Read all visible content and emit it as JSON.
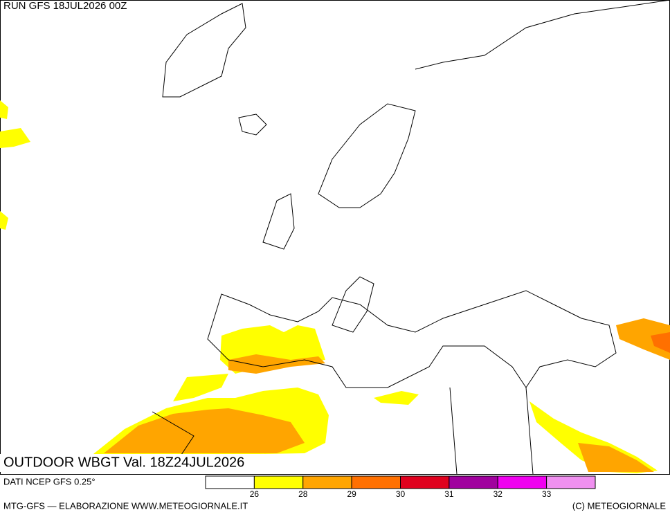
{
  "header": {
    "run": "RUN GFS 18JUL2026 00Z"
  },
  "map": {
    "title": "OUTDOOR WBGT Val. 18Z24JUL2026"
  },
  "legend": {
    "source": "DATI NCEP GFS 0.25°",
    "colors": [
      "#ffffff",
      "#ffff00",
      "#ffa500",
      "#ff7000",
      "#e0001e",
      "#a0009e",
      "#f000f0",
      "#f090f0"
    ],
    "labels": [
      26,
      28,
      29,
      30,
      31,
      32,
      33
    ]
  },
  "footer": {
    "left": "MTG-GFS — ELABORAZIONE WWW.METEOGIORNALE.IT",
    "right": "(C) METEOGIORNALE"
  }
}
